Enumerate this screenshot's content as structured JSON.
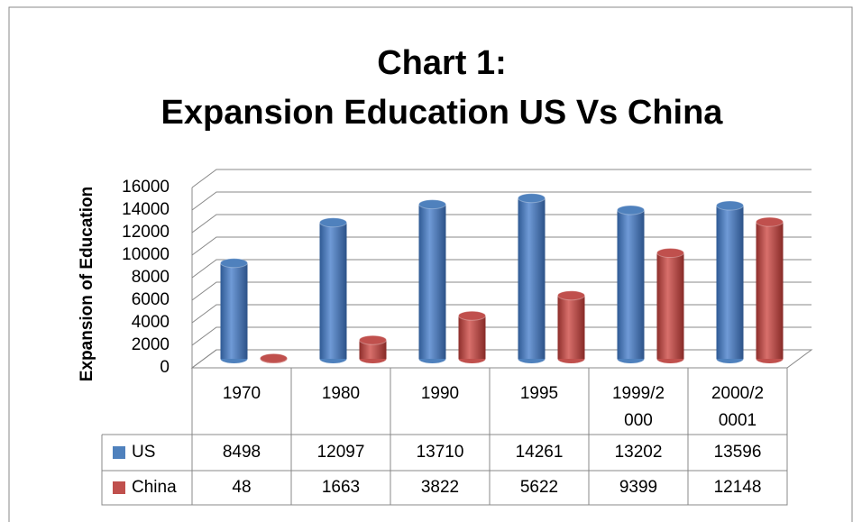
{
  "chart_data": {
    "type": "bar",
    "title": "Chart 1:",
    "subtitle": "Expansion Education US Vs China",
    "y_label": "Expansion of Education",
    "categories": [
      "1970",
      "1980",
      "1990",
      "1995",
      "1999/2000",
      "2000/20001"
    ],
    "series": [
      {
        "name": "US",
        "color": "#4f81bd",
        "values": [
          8498,
          12097,
          13710,
          14261,
          13202,
          13596
        ]
      },
      {
        "name": "China",
        "color": "#c0504d",
        "values": [
          48,
          1663,
          3822,
          5622,
          9399,
          12148
        ]
      }
    ],
    "ylim": [
      0,
      16000
    ],
    "yticks": [
      0,
      2000,
      4000,
      6000,
      8000,
      10000,
      12000,
      14000,
      16000
    ],
    "grid": true
  }
}
